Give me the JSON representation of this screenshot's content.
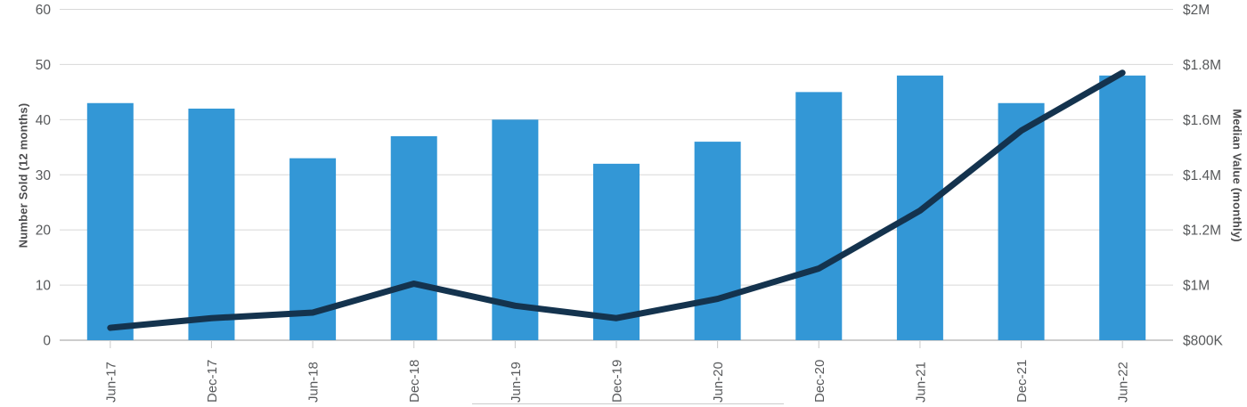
{
  "page": {
    "background": "#ffffff"
  },
  "chart_data": {
    "type": "bar+line",
    "categories": [
      "Jun-17",
      "Dec-17",
      "Jun-18",
      "Dec-18",
      "Jun-19",
      "Dec-19",
      "Jun-20",
      "Dec-20",
      "Jun-21",
      "Dec-21",
      "Jun-22"
    ],
    "series": [
      {
        "name": "Number Sold (12 months)",
        "type": "bar",
        "axis": "left",
        "color": "#3397d6",
        "values": [
          43,
          42,
          33,
          37,
          40,
          32,
          36,
          45,
          48,
          43,
          48
        ]
      },
      {
        "name": "Median Value (monthly)",
        "type": "line",
        "axis": "right",
        "color": "#14334e",
        "values": [
          845000,
          880000,
          900000,
          1005000,
          925000,
          880000,
          950000,
          1060000,
          1270000,
          1560000,
          1770000
        ]
      }
    ],
    "left_axis": {
      "title": "Number Sold (12 months)",
      "min": 0,
      "max": 60,
      "tick_values": [
        0,
        10,
        20,
        30,
        40,
        50,
        60
      ],
      "tick_labels": [
        "0",
        "10",
        "20",
        "30",
        "40",
        "50",
        "60"
      ]
    },
    "right_axis": {
      "title": "Median Value (monthly)",
      "min": 800000,
      "max": 2000000,
      "tick_values": [
        800000,
        1000000,
        1200000,
        1400000,
        1600000,
        1800000,
        2000000
      ],
      "tick_labels": [
        "$800K",
        "$1M",
        "$1.2M",
        "$1.4M",
        "$1.6M",
        "$1.8M",
        "$2M"
      ]
    },
    "grid": true,
    "legend_position": "bottom (cropped out of view, top border visible)"
  },
  "style": {
    "grid_color": "#d8d8d8",
    "axis_line_color": "#9b9b9b",
    "tick_mark_color": "#c9c9c9",
    "tick_text_color": "#57595b",
    "axis_title_color": "#4c4c4e",
    "bar_color": "#3397d6",
    "line_color": "#14334e"
  }
}
